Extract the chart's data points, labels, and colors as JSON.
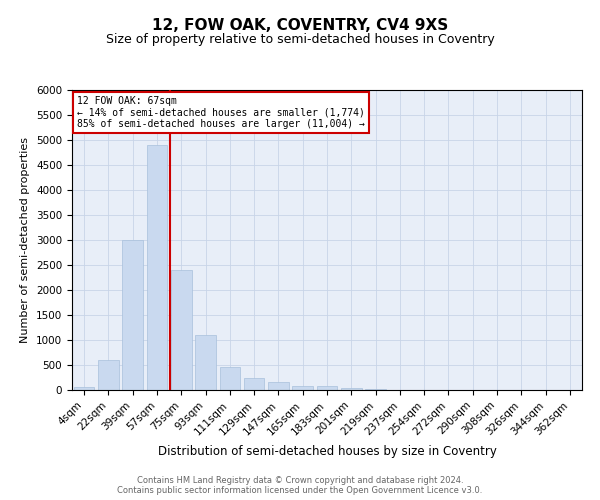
{
  "title": "12, FOW OAK, COVENTRY, CV4 9XS",
  "subtitle": "Size of property relative to semi-detached houses in Coventry",
  "xlabel": "Distribution of semi-detached houses by size in Coventry",
  "ylabel": "Number of semi-detached properties",
  "categories": [
    "4sqm",
    "22sqm",
    "39sqm",
    "57sqm",
    "75sqm",
    "93sqm",
    "111sqm",
    "129sqm",
    "147sqm",
    "165sqm",
    "183sqm",
    "201sqm",
    "219sqm",
    "237sqm",
    "254sqm",
    "272sqm",
    "290sqm",
    "308sqm",
    "326sqm",
    "344sqm",
    "362sqm"
  ],
  "values": [
    70,
    600,
    3000,
    4900,
    2400,
    1100,
    460,
    240,
    160,
    90,
    80,
    50,
    20,
    10,
    5,
    2,
    1,
    1,
    0,
    0,
    0
  ],
  "bar_color": "#c9d9ef",
  "bar_edge_color": "#a8c0db",
  "vline_color": "#cc0000",
  "annotation_text": "12 FOW OAK: 67sqm\n← 14% of semi-detached houses are smaller (1,774)\n85% of semi-detached houses are larger (11,004) →",
  "annotation_box_color": "#cc0000",
  "ylim": [
    0,
    6000
  ],
  "yticks": [
    0,
    500,
    1000,
    1500,
    2000,
    2500,
    3000,
    3500,
    4000,
    4500,
    5000,
    5500,
    6000
  ],
  "grid_color": "#c8d4e8",
  "background_color": "#e8eef8",
  "title_fontsize": 11,
  "subtitle_fontsize": 9,
  "tick_fontsize": 7.5,
  "ylabel_fontsize": 8,
  "xlabel_fontsize": 8.5,
  "footer_line1": "Contains HM Land Registry data © Crown copyright and database right 2024.",
  "footer_line2": "Contains public sector information licensed under the Open Government Licence v3.0."
}
